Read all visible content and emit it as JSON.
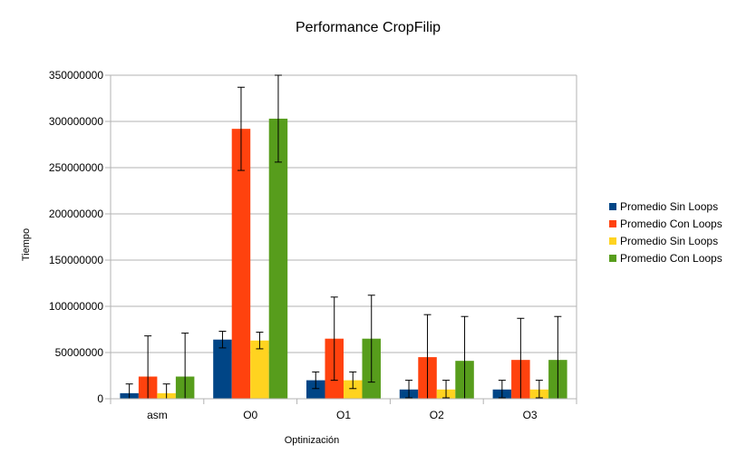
{
  "chart_data": {
    "type": "bar",
    "title": "Performance CropFilip",
    "xlabel": "Optinización",
    "ylabel": "Tiempo",
    "categories": [
      "asm",
      "O0",
      "O1",
      "O2",
      "O3"
    ],
    "ylim": [
      0,
      350000000
    ],
    "yticks": [
      0,
      50000000,
      100000000,
      150000000,
      200000000,
      250000000,
      300000000,
      350000000
    ],
    "grid": "horizontal",
    "legend_position": "right",
    "series": [
      {
        "name": "Promedio Sin Loops",
        "color": "#004586",
        "values": [
          6000000,
          64000000,
          20000000,
          10000000,
          10000000
        ],
        "error_low": [
          0,
          55000000,
          11000000,
          1000000,
          1000000
        ],
        "error_high": [
          16000000,
          73000000,
          29000000,
          20000000,
          20000000
        ]
      },
      {
        "name": "Promedio Con Loops",
        "color": "#ff420e",
        "values": [
          24000000,
          292000000,
          65000000,
          45000000,
          42000000
        ],
        "error_low": [
          0,
          247000000,
          20000000,
          0,
          0
        ],
        "error_high": [
          68000000,
          337000000,
          110000000,
          91000000,
          87000000
        ]
      },
      {
        "name": "Promedio Sin Loops",
        "color": "#ffd320",
        "values": [
          6000000,
          63000000,
          20000000,
          10000000,
          10000000
        ],
        "error_low": [
          0,
          54000000,
          11000000,
          1000000,
          1000000
        ],
        "error_high": [
          16000000,
          72000000,
          29000000,
          20000000,
          20000000
        ]
      },
      {
        "name": "Promedio Con Loops",
        "color": "#579d1c",
        "values": [
          24000000,
          303000000,
          65000000,
          41000000,
          42000000
        ],
        "error_low": [
          0,
          256000000,
          18000000,
          0,
          0
        ],
        "error_high": [
          71000000,
          350000000,
          112000000,
          89000000,
          89000000
        ]
      }
    ]
  }
}
